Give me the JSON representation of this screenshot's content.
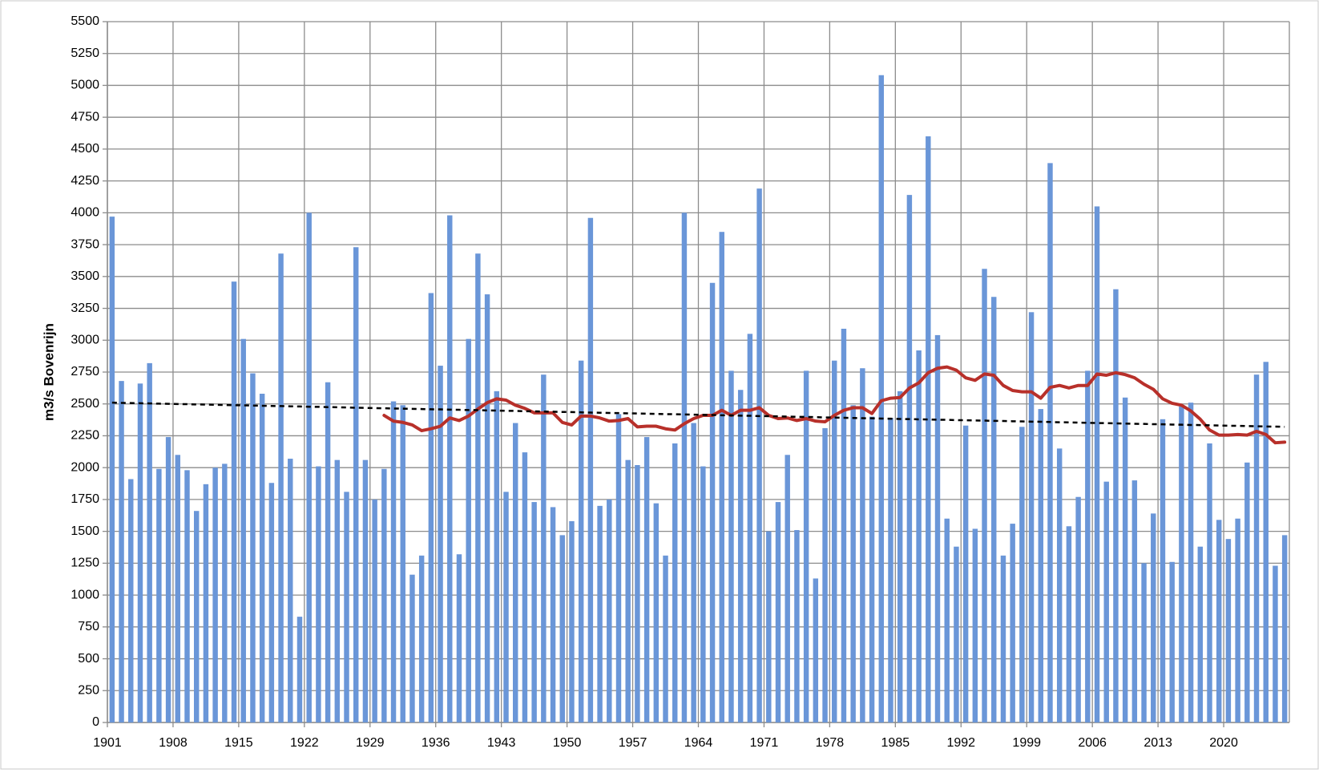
{
  "chart_data": {
    "type": "bar",
    "y_label": "m3/s Bovenrijn",
    "categories": [
      "1901",
      null,
      null,
      null,
      null,
      null,
      null,
      "1908",
      null,
      null,
      null,
      null,
      null,
      null,
      "1915",
      null,
      null,
      null,
      null,
      null,
      null,
      "1922",
      null,
      null,
      null,
      null,
      null,
      null,
      "1929",
      null,
      null,
      null,
      null,
      null,
      null,
      "1936",
      null,
      null,
      null,
      null,
      null,
      null,
      "1943",
      null,
      null,
      null,
      null,
      null,
      null,
      "1950",
      null,
      null,
      null,
      null,
      null,
      null,
      "1957",
      null,
      null,
      null,
      null,
      null,
      null,
      "1964",
      null,
      null,
      null,
      null,
      null,
      null,
      "1971",
      null,
      null,
      null,
      null,
      null,
      null,
      "1978",
      null,
      null,
      null,
      null,
      null,
      null,
      "1985",
      null,
      null,
      null,
      null,
      null,
      null,
      "1992",
      null,
      null,
      null,
      null,
      null,
      null,
      "1999",
      null,
      null,
      null,
      null,
      null,
      null,
      "2006",
      null,
      null,
      null,
      null,
      null,
      null,
      "2013",
      null,
      null,
      null,
      null,
      null,
      null,
      "2020",
      null,
      null,
      null,
      null,
      null,
      null
    ],
    "series": [
      {
        "type": "bar",
        "color": "#6a96d8",
        "values": [
          3970,
          2680,
          1910,
          2660,
          2820,
          1990,
          2240,
          2100,
          1980,
          1660,
          1870,
          2000,
          2030,
          3460,
          3010,
          2740,
          2580,
          1880,
          3680,
          2070,
          830,
          4000,
          2010,
          2670,
          2060,
          1810,
          3730,
          2060,
          1750,
          1990,
          2520,
          2490,
          1160,
          1310,
          3370,
          2800,
          3980,
          1320,
          3010,
          3680,
          3360,
          2600,
          1810,
          2350,
          2120,
          1730,
          2730,
          1690,
          1470,
          1580,
          2840,
          3960,
          1700,
          1750,
          2420,
          2060,
          2020,
          2240,
          1720,
          1310,
          2190,
          4000,
          2350,
          2010,
          3450,
          3850,
          2760,
          2610,
          3050,
          4190,
          1500,
          1730,
          2100,
          1510,
          2760,
          1130,
          2310,
          2840,
          3090,
          2490,
          2780,
          2400,
          5080,
          2390,
          2600,
          4140,
          2920,
          4600,
          3040,
          1600,
          1380,
          2330,
          1520,
          3560,
          3340,
          1310,
          1560,
          2320,
          3220,
          2460,
          4390,
          2150,
          1540,
          1770,
          2760,
          4050,
          1890,
          3400,
          2550,
          1900,
          1250,
          1640,
          2380,
          1260,
          2480,
          2510,
          1380,
          2190,
          1590,
          1440,
          1600,
          2040,
          2730,
          2830,
          1230,
          1470
        ]
      },
      {
        "type": "line",
        "color": "#b8302a",
        "width": 4,
        "values": [
          null,
          null,
          null,
          null,
          null,
          null,
          null,
          null,
          null,
          null,
          null,
          null,
          null,
          null,
          null,
          null,
          null,
          null,
          null,
          null,
          null,
          null,
          null,
          null,
          null,
          null,
          null,
          null,
          null,
          2410,
          2365,
          2355,
          2335,
          2290,
          2305,
          2325,
          2390,
          2370,
          2405,
          2460,
          2510,
          2540,
          2530,
          2490,
          2465,
          2430,
          2430,
          2430,
          2355,
          2335,
          2405,
          2405,
          2390,
          2365,
          2370,
          2385,
          2320,
          2325,
          2325,
          2305,
          2295,
          2345,
          2385,
          2410,
          2410,
          2450,
          2410,
          2450,
          2450,
          2470,
          2410,
          2385,
          2390,
          2370,
          2385,
          2365,
          2360,
          2410,
          2450,
          2470,
          2470,
          2425,
          2525,
          2545,
          2550,
          2625,
          2665,
          2745,
          2780,
          2790,
          2765,
          2705,
          2685,
          2735,
          2725,
          2645,
          2605,
          2595,
          2595,
          2545,
          2630,
          2645,
          2625,
          2645,
          2645,
          2735,
          2725,
          2745,
          2730,
          2705,
          2655,
          2615,
          2540,
          2505,
          2490,
          2445,
          2380,
          2295,
          2255,
          2255,
          2260,
          2255,
          2285,
          2260,
          2195,
          2200
        ]
      },
      {
        "type": "line",
        "color": "#000000",
        "width": 2.5,
        "dashed": true,
        "values": [
          2510,
          2508,
          2507,
          2505,
          2504,
          2502,
          2501,
          2499,
          2498,
          2496,
          2495,
          2493,
          2492,
          2490,
          2489,
          2487,
          2486,
          2484,
          2483,
          2481,
          2480,
          2478,
          2477,
          2475,
          2474,
          2472,
          2470,
          2469,
          2467,
          2466,
          2464,
          2463,
          2461,
          2460,
          2458,
          2457,
          2455,
          2454,
          2452,
          2451,
          2449,
          2448,
          2446,
          2445,
          2443,
          2442,
          2440,
          2439,
          2437,
          2436,
          2434,
          2432,
          2431,
          2429,
          2428,
          2426,
          2425,
          2423,
          2422,
          2420,
          2419,
          2417,
          2416,
          2414,
          2413,
          2411,
          2410,
          2408,
          2407,
          2405,
          2404,
          2402,
          2401,
          2399,
          2398,
          2396,
          2394,
          2393,
          2391,
          2390,
          2388,
          2387,
          2385,
          2384,
          2382,
          2381,
          2379,
          2378,
          2376,
          2375,
          2373,
          2372,
          2370,
          2369,
          2367,
          2366,
          2364,
          2363,
          2361,
          2360,
          2358,
          2356,
          2355,
          2353,
          2352,
          2350,
          2349,
          2347,
          2346,
          2344,
          2343,
          2341,
          2340,
          2338,
          2337,
          2335,
          2334,
          2332,
          2331,
          2329,
          2328,
          2326,
          2325,
          2323,
          2322,
          2320
        ]
      }
    ],
    "ylim": [
      0,
      5500
    ],
    "yticks": [
      0,
      250,
      500,
      750,
      1000,
      1250,
      1500,
      1750,
      2000,
      2250,
      2500,
      2750,
      3000,
      3250,
      3500,
      3750,
      4000,
      4250,
      4500,
      4750,
      5000,
      5250,
      5500
    ],
    "grid": true
  }
}
